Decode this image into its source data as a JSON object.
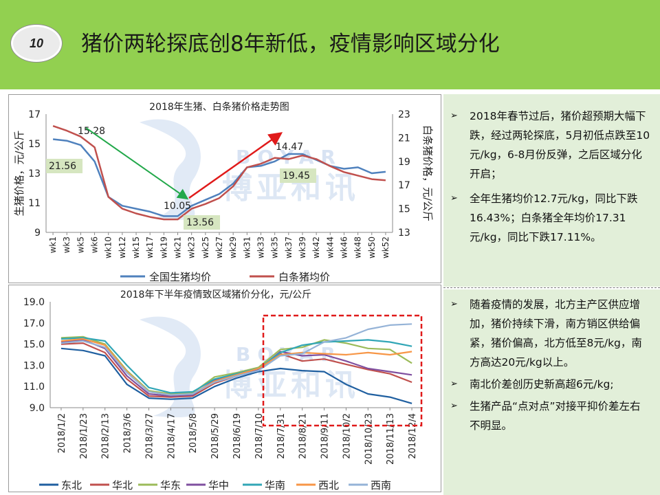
{
  "header": {
    "badge": "10",
    "title": "猪价两轮探底创8年新低，疫情影响区域分化",
    "bg_color": "#92d050"
  },
  "watermark": {
    "en": "BOYAR",
    "cn": "博亚和讯"
  },
  "sidebar_top": {
    "bullets": [
      "2018年春节过后，猪价超预期大幅下跌，经过两轮探底，5月初低点跌至10元/kg，6-8月份反弹，之后区域分化开启；",
      "全年生猪均价12.7元/kg，同比下跌16.43%；白条猪全年均价17.31元/kg，同比下跌17.11%。"
    ]
  },
  "sidebar_bottom": {
    "bullets": [
      "随着疫情的发展，北方主产区供应增加，猪价持续下滑，南方销区供给偏紧，猪价偏高，北方低至8元/kg，南方高达20元/kg以上。",
      "南北价差创历史新高超6元/kg;",
      "生猪产品“点对点”对接平抑价差左右不明显。"
    ]
  },
  "chart_data": [
    {
      "type": "line",
      "title": "2018年生猪、白条猪价格走势图",
      "ylabel": "生猪价格，元/公斤",
      "y2label": "白条猪价格，元/公斤",
      "ylim": [
        9,
        17
      ],
      "y2lim": [
        13,
        23
      ],
      "yticks": [
        "9",
        "11",
        "13",
        "15",
        "17"
      ],
      "y2ticks": [
        "13",
        "15",
        "17",
        "19",
        "21",
        "23"
      ],
      "categories": [
        "wk1",
        "wk3",
        "wk5",
        "wk6",
        "wk10",
        "wk12",
        "wk15",
        "wk17",
        "wk19",
        "wk21",
        "wk23",
        "wk25",
        "wk27",
        "wk29",
        "wk31",
        "wk33",
        "wk35",
        "wk37",
        "wk39",
        "wk42",
        "wk44",
        "wk46",
        "wk48",
        "wk50",
        "wk52"
      ],
      "series": [
        {
          "name": "全国生猪均价",
          "axis": "left",
          "color": "#4f81bd",
          "values": [
            15.3,
            15.2,
            14.9,
            13.8,
            11.4,
            10.8,
            10.6,
            10.4,
            10.1,
            10.1,
            10.8,
            11.2,
            11.6,
            12.3,
            13.4,
            13.5,
            13.8,
            14.3,
            14.3,
            13.9,
            13.5,
            13.3,
            13.4,
            13.0,
            13.1
          ]
        },
        {
          "name": "白条猪均价",
          "axis": "right",
          "color": "#c0504d",
          "values": [
            22.0,
            21.6,
            21.1,
            20.2,
            16.0,
            15.0,
            14.6,
            14.3,
            14.1,
            14.1,
            15.0,
            15.4,
            15.9,
            16.9,
            18.5,
            18.8,
            19.3,
            19.2,
            19.5,
            19.2,
            18.6,
            18.1,
            17.8,
            17.5,
            17.4
          ]
        }
      ],
      "annotations": [
        "15.28",
        "21.56",
        "10.05",
        "13.56",
        "14.47",
        "19.45"
      ]
    },
    {
      "type": "line",
      "title": "2018年下半年疫情致区域猪价分化，元/公斤",
      "ylim": [
        9.0,
        19.0
      ],
      "yticks": [
        "9.0",
        "11.0",
        "13.0",
        "15.0",
        "17.0",
        "19.0"
      ],
      "categories": [
        "2018/1/2",
        "2018/1/23",
        "2018/2/13",
        "2018/3/6",
        "2018/3/27",
        "2018/4/17",
        "2018/5/8",
        "2018/5/29",
        "2018/6/19",
        "2018/7/10",
        "2018/7/31",
        "2018/8/21",
        "2018/9/11",
        "2018/10/2",
        "2018/10/23",
        "2018/11/13",
        "2018/12/4"
      ],
      "series": [
        {
          "name": "东北",
          "color": "#1f5fa0",
          "values": [
            14.6,
            14.4,
            13.9,
            11.2,
            9.9,
            9.8,
            9.9,
            11.0,
            11.8,
            12.4,
            12.7,
            12.5,
            12.4,
            11.2,
            10.3,
            10.0,
            9.4
          ]
        },
        {
          "name": "华北",
          "color": "#c0504d",
          "values": [
            15.0,
            15.1,
            14.2,
            11.7,
            10.1,
            10.0,
            10.1,
            11.3,
            12.0,
            12.6,
            14.1,
            13.4,
            13.6,
            13.1,
            12.6,
            12.2,
            11.4
          ]
        },
        {
          "name": "华东",
          "color": "#9bbb59",
          "values": [
            15.6,
            15.7,
            15.0,
            12.5,
            10.6,
            10.3,
            10.4,
            11.9,
            12.3,
            12.8,
            14.5,
            14.7,
            15.4,
            15.1,
            14.6,
            14.5,
            13.2
          ]
        },
        {
          "name": "华中",
          "color": "#7f4f9f",
          "values": [
            15.2,
            15.4,
            14.6,
            12.0,
            10.3,
            10.1,
            10.2,
            11.6,
            12.1,
            12.6,
            14.3,
            13.9,
            14.0,
            13.4,
            12.7,
            12.4,
            12.1
          ]
        },
        {
          "name": "华南",
          "color": "#31a6b6",
          "values": [
            15.5,
            15.6,
            15.3,
            13.0,
            10.9,
            10.4,
            10.5,
            11.7,
            12.2,
            12.7,
            14.2,
            14.9,
            15.2,
            15.3,
            15.4,
            15.2,
            14.8
          ]
        },
        {
          "name": "西北",
          "color": "#f79646",
          "values": [
            15.3,
            15.5,
            14.9,
            12.4,
            10.5,
            10.2,
            10.3,
            11.5,
            12.1,
            12.7,
            14.0,
            14.2,
            14.1,
            14.0,
            14.2,
            14.0,
            14.3
          ]
        },
        {
          "name": "西南",
          "color": "#95b3d7",
          "values": [
            15.1,
            15.3,
            14.7,
            12.3,
            10.5,
            10.2,
            10.3,
            11.4,
            12.0,
            12.5,
            13.9,
            14.1,
            15.2,
            15.6,
            16.4,
            16.8,
            16.9
          ]
        }
      ]
    }
  ]
}
